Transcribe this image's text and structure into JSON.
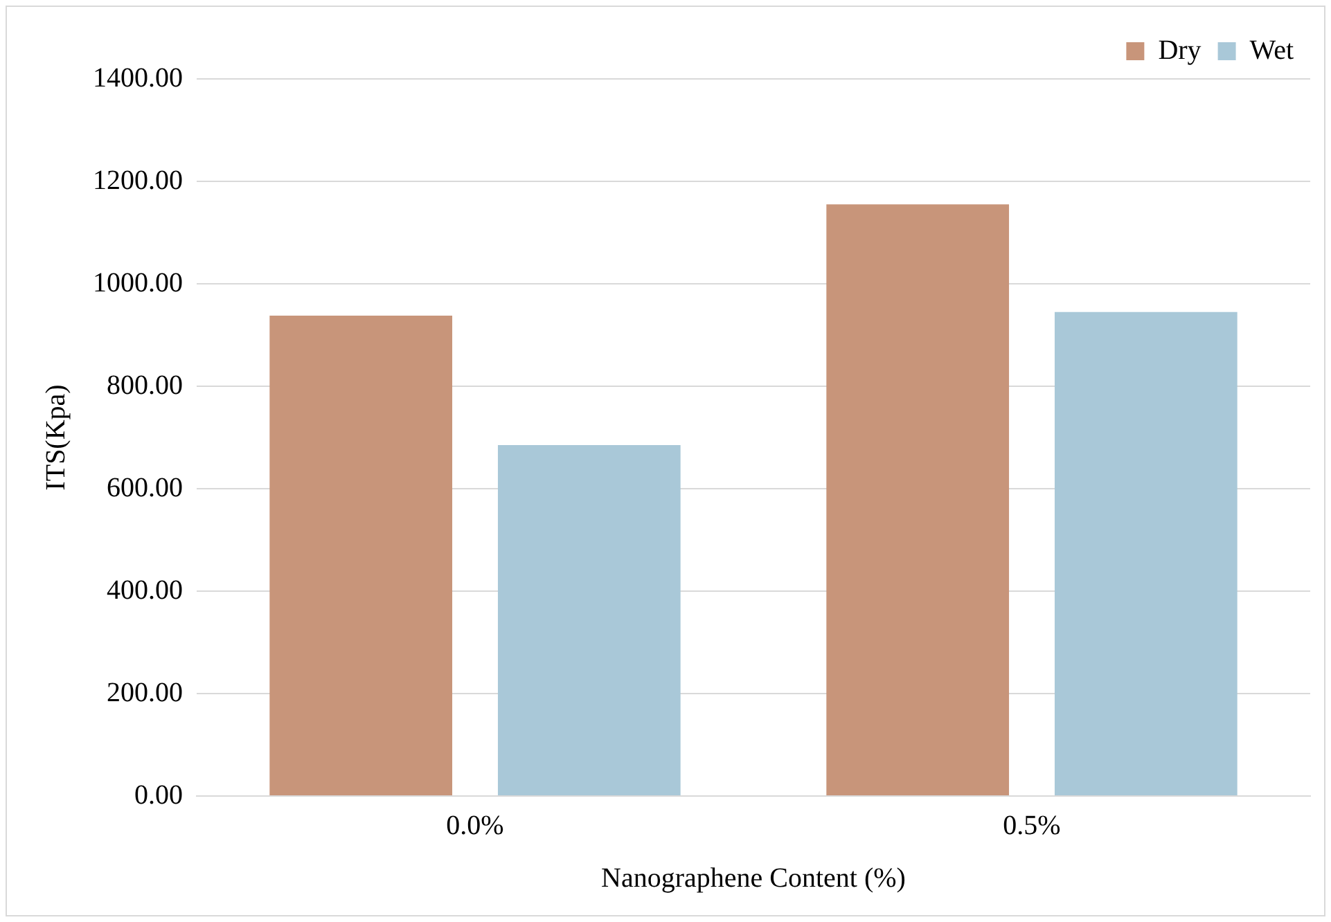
{
  "chart_data": {
    "type": "bar",
    "xlabel": "Nanographene Content (%)",
    "ylabel": "ITS(Kpa)",
    "categories": [
      "0.0%",
      "0.5%"
    ],
    "series": [
      {
        "name": "Dry",
        "color": "#c8957a",
        "values": [
          938,
          1155
        ]
      },
      {
        "name": "Wet",
        "color": "#a9c8d8",
        "values": [
          685,
          945
        ]
      }
    ],
    "ylim": [
      0,
      1400
    ],
    "yticks": [
      {
        "value": 0,
        "label": "0.00"
      },
      {
        "value": 200,
        "label": "200.00"
      },
      {
        "value": 400,
        "label": "400.00"
      },
      {
        "value": 600,
        "label": "600.00"
      },
      {
        "value": 800,
        "label": "800.00"
      },
      {
        "value": 1000,
        "label": "1000.00"
      },
      {
        "value": 1200,
        "label": "1200.00"
      },
      {
        "value": 1400,
        "label": "1400.00"
      }
    ],
    "grid": "y",
    "legend": "top right"
  }
}
